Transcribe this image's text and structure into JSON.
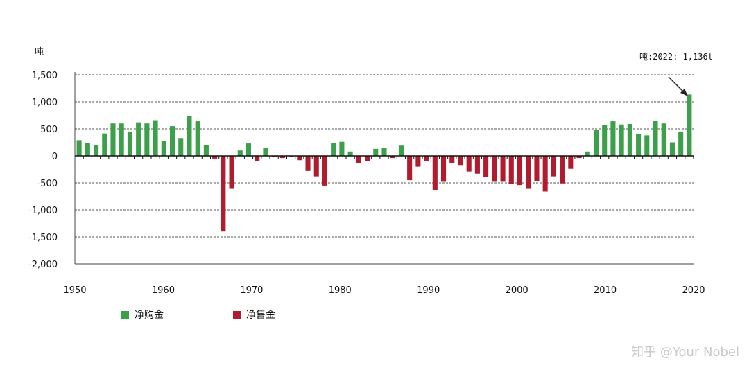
{
  "chart_data": {
    "type": "bar",
    "unit_label": "吨",
    "annotation": "吨:2022: 1,136t",
    "x_ticks": [
      "1950",
      "1960",
      "1970",
      "1980",
      "1990",
      "2000",
      "2010",
      "2020"
    ],
    "y_ticks": [
      "1,500",
      "1,000",
      "500",
      "0",
      "-500",
      "-1,000",
      "-1,500",
      "-2,000"
    ],
    "ylim": [
      -2000,
      1500
    ],
    "xlim": [
      1950,
      2022
    ],
    "grid": true,
    "legend_position": "bottom-left",
    "series": [
      {
        "name": "净购金",
        "color": "#3ca04a"
      },
      {
        "name": "净售金",
        "color": "#b01c2e"
      }
    ],
    "x": [
      1950,
      1951,
      1952,
      1953,
      1954,
      1955,
      1956,
      1957,
      1958,
      1959,
      1960,
      1961,
      1962,
      1963,
      1964,
      1965,
      1966,
      1967,
      1968,
      1969,
      1970,
      1971,
      1972,
      1973,
      1974,
      1975,
      1976,
      1977,
      1978,
      1979,
      1980,
      1981,
      1982,
      1983,
      1984,
      1985,
      1986,
      1987,
      1988,
      1989,
      1990,
      1991,
      1992,
      1993,
      1994,
      1995,
      1996,
      1997,
      1998,
      1999,
      2000,
      2001,
      2002,
      2003,
      2004,
      2005,
      2006,
      2007,
      2008,
      2009,
      2010,
      2011,
      2012,
      2013,
      2014,
      2015,
      2016,
      2017,
      2018,
      2019,
      2020,
      2021,
      2022
    ],
    "values": [
      290,
      235,
      200,
      415,
      600,
      600,
      450,
      620,
      600,
      660,
      275,
      550,
      330,
      735,
      640,
      200,
      -50,
      -1400,
      -610,
      100,
      230,
      -100,
      145,
      -25,
      -40,
      -20,
      -80,
      -280,
      -380,
      -550,
      240,
      260,
      80,
      -140,
      -90,
      130,
      145,
      -40,
      190,
      -450,
      -200,
      -100,
      -630,
      -480,
      -130,
      -170,
      -290,
      -330,
      -390,
      -480,
      -480,
      -520,
      -540,
      -610,
      -470,
      -660,
      -380,
      -510,
      -240,
      -40,
      80,
      480,
      570,
      640,
      580,
      590,
      400,
      380,
      650,
      600,
      250,
      450,
      1136
    ]
  },
  "watermark": "知乎 @Your Nobel"
}
